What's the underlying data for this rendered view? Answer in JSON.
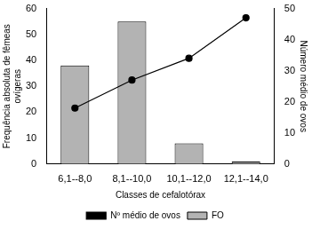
{
  "chart_data": {
    "type": "bar",
    "categories": [
      "6,1--8,0",
      "8,1--10,0",
      "10,1--12,0",
      "12,1--14,0"
    ],
    "series": [
      {
        "name": "FO",
        "type": "bar",
        "color": "#b3b3b3",
        "values": [
          38,
          55,
          8,
          1
        ]
      },
      {
        "name": "Nº médio de ovos",
        "type": "line",
        "color": "#000000",
        "marker": "circle",
        "line_style": "solid",
        "axis": "y2",
        "values": [
          18,
          27,
          34,
          47
        ]
      }
    ],
    "x_label": "Classes de cefalotórax",
    "y_label": [
      "Frequência absoluta de fêmeas",
      "ovígeras"
    ],
    "y2_label": "Número médio de ovos",
    "ylim": [
      0,
      60
    ],
    "yticks": [
      0,
      10,
      20,
      30,
      40,
      50,
      60
    ],
    "y2lim": [
      0,
      50
    ],
    "y2ticks": [
      0,
      10,
      20,
      30,
      40,
      50
    ],
    "grid": false,
    "legend": "bottom"
  }
}
